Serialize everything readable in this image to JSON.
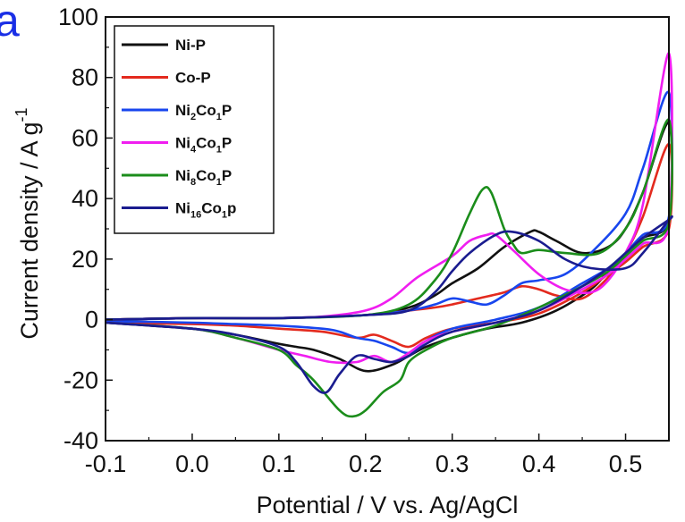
{
  "chart_data": {
    "type": "line",
    "panel_label": "a",
    "xlabel": "Potential / V vs. Ag/AgCl",
    "ylabel": "Current density / A g",
    "ylabel_sup": "-1",
    "xlim": [
      -0.1,
      0.55
    ],
    "ylim": [
      -40,
      100
    ],
    "xticks": [
      -0.1,
      0.0,
      0.1,
      0.2,
      0.3,
      0.4,
      0.5
    ],
    "xtick_labels": [
      "-0.1",
      "0.0",
      "0.1",
      "0.2",
      "0.3",
      "0.4",
      "0.5"
    ],
    "yticks": [
      -40,
      -20,
      0,
      20,
      40,
      60,
      80,
      100
    ],
    "ytick_labels": [
      "-40",
      "-20",
      "0",
      "20",
      "40",
      "60",
      "80",
      "100"
    ],
    "grid": false,
    "legend_position": "top-left",
    "series": [
      {
        "name": "Ni-P",
        "color": "#111111",
        "legend": [
          {
            "t": "Ni-P",
            "sub": false
          }
        ],
        "x": [
          -0.1,
          0.0,
          0.1,
          0.2,
          0.25,
          0.28,
          0.3,
          0.33,
          0.36,
          0.39,
          0.4,
          0.42,
          0.45,
          0.48,
          0.5,
          0.52,
          0.55,
          0.55,
          0.52,
          0.5,
          0.48,
          0.46,
          0.42,
          0.38,
          0.34,
          0.3,
          0.27,
          0.25,
          0.23,
          0.2,
          0.17,
          0.14,
          0.12,
          0.1,
          0.05,
          0.0,
          -0.1
        ],
        "y": [
          0,
          0.5,
          0.5,
          1.5,
          4,
          8,
          12,
          17,
          24,
          29,
          29,
          26,
          22,
          24,
          30,
          42,
          65,
          33,
          27,
          22,
          16,
          10,
          3,
          -1,
          -3,
          -6,
          -9,
          -12,
          -15,
          -17,
          -13,
          -10,
          -9,
          -8,
          -5,
          -3,
          -1
        ]
      },
      {
        "name": "Co-P",
        "color": "#e32a1e",
        "legend": [
          {
            "t": "Co-P",
            "sub": false
          }
        ],
        "x": [
          -0.1,
          0.0,
          0.1,
          0.2,
          0.25,
          0.28,
          0.3,
          0.33,
          0.36,
          0.38,
          0.4,
          0.42,
          0.45,
          0.48,
          0.5,
          0.52,
          0.55,
          0.55,
          0.52,
          0.5,
          0.48,
          0.45,
          0.4,
          0.35,
          0.3,
          0.27,
          0.25,
          0.23,
          0.21,
          0.19,
          0.15,
          0.1,
          0.05,
          0.0,
          -0.1
        ],
        "y": [
          0,
          0.5,
          0.5,
          1.5,
          3,
          4,
          5,
          7,
          9,
          11,
          10,
          8,
          7,
          14,
          22,
          34,
          58,
          30,
          24,
          19,
          15,
          9,
          2,
          -1,
          -3,
          -6,
          -9,
          -7,
          -5,
          -6,
          -4,
          -3,
          -2,
          -1.5,
          -1
        ]
      },
      {
        "name": "Ni2Co1P",
        "color": "#1846ee",
        "legend": [
          {
            "t": "Ni",
            "sub": false
          },
          {
            "t": "2",
            "sub": true
          },
          {
            "t": "Co",
            "sub": false
          },
          {
            "t": "1",
            "sub": true
          },
          {
            "t": "P",
            "sub": false
          }
        ],
        "x": [
          -0.1,
          0.0,
          0.1,
          0.2,
          0.25,
          0.28,
          0.3,
          0.32,
          0.34,
          0.36,
          0.38,
          0.4,
          0.43,
          0.46,
          0.5,
          0.52,
          0.55,
          0.55,
          0.52,
          0.5,
          0.48,
          0.45,
          0.4,
          0.35,
          0.3,
          0.27,
          0.25,
          0.23,
          0.21,
          0.19,
          0.17,
          0.15,
          0.1,
          0.05,
          0.0,
          -0.1
        ],
        "y": [
          0,
          0.5,
          0.5,
          1.5,
          3,
          5,
          7,
          6,
          5,
          8,
          12,
          13,
          15,
          22,
          35,
          50,
          75,
          34,
          28,
          22,
          17,
          12,
          4,
          0,
          -3,
          -7,
          -11,
          -9,
          -7,
          -6,
          -4,
          -3,
          -2,
          -1.5,
          -1,
          -0.5
        ]
      },
      {
        "name": "Ni4Co1P",
        "color": "#f01ef0",
        "legend": [
          {
            "t": "Ni",
            "sub": false
          },
          {
            "t": "4",
            "sub": true
          },
          {
            "t": "Co",
            "sub": false
          },
          {
            "t": "1",
            "sub": true
          },
          {
            "t": "P",
            "sub": false
          }
        ],
        "x": [
          -0.1,
          0.0,
          0.1,
          0.15,
          0.2,
          0.23,
          0.26,
          0.3,
          0.32,
          0.34,
          0.35,
          0.37,
          0.4,
          0.43,
          0.46,
          0.48,
          0.5,
          0.52,
          0.55,
          0.55,
          0.52,
          0.5,
          0.48,
          0.45,
          0.4,
          0.35,
          0.3,
          0.27,
          0.25,
          0.23,
          0.21,
          0.19,
          0.16,
          0.13,
          0.1,
          0.05,
          0.0,
          -0.1
        ],
        "y": [
          0,
          0.5,
          0.5,
          1,
          3,
          7,
          14,
          21,
          26,
          28,
          28,
          23,
          15,
          10,
          9,
          13,
          22,
          38,
          88,
          32,
          25,
          20,
          15,
          10,
          3,
          -1,
          -4,
          -7,
          -11,
          -14,
          -12,
          -14,
          -14,
          -12,
          -10,
          -6,
          -3,
          -1
        ]
      },
      {
        "name": "Ni8Co1P",
        "color": "#1b8d1b",
        "legend": [
          {
            "t": "Ni",
            "sub": false
          },
          {
            "t": "8",
            "sub": true
          },
          {
            "t": "Co",
            "sub": false
          },
          {
            "t": "1",
            "sub": true
          },
          {
            "t": "P",
            "sub": false
          }
        ],
        "x": [
          -0.1,
          0.0,
          0.1,
          0.2,
          0.25,
          0.28,
          0.3,
          0.32,
          0.335,
          0.345,
          0.36,
          0.37,
          0.38,
          0.4,
          0.43,
          0.47,
          0.5,
          0.52,
          0.55,
          0.55,
          0.52,
          0.5,
          0.48,
          0.45,
          0.4,
          0.35,
          0.3,
          0.27,
          0.25,
          0.24,
          0.22,
          0.2,
          0.185,
          0.17,
          0.14,
          0.12,
          0.1,
          0.05,
          0.0,
          -0.1
        ],
        "y": [
          0,
          0.5,
          0.5,
          1.5,
          5,
          13,
          22,
          35,
          43,
          42,
          30,
          25,
          22,
          23,
          22,
          22,
          30,
          42,
          66,
          32,
          26,
          21,
          16,
          11,
          4,
          -2,
          -6,
          -10,
          -14,
          -20,
          -24,
          -30,
          -32,
          -30,
          -20,
          -15,
          -10,
          -6,
          -3,
          -1
        ]
      },
      {
        "name": "Ni16Co1P",
        "color": "#1a1c8f",
        "legend": [
          {
            "t": "Ni",
            "sub": false
          },
          {
            "t": "16",
            "sub": true
          },
          {
            "t": "Co",
            "sub": false
          },
          {
            "t": "1",
            "sub": true
          },
          {
            "t": "p",
            "sub": false
          }
        ],
        "x": [
          -0.1,
          0.0,
          0.1,
          0.2,
          0.25,
          0.28,
          0.3,
          0.32,
          0.35,
          0.37,
          0.4,
          0.43,
          0.46,
          0.5,
          0.52,
          0.55,
          0.55,
          0.52,
          0.5,
          0.48,
          0.45,
          0.4,
          0.35,
          0.3,
          0.27,
          0.25,
          0.23,
          0.21,
          0.19,
          0.17,
          0.155,
          0.14,
          0.12,
          0.1,
          0.05,
          0.0,
          -0.1
        ],
        "y": [
          0,
          0.5,
          0.5,
          1.5,
          3,
          9,
          16,
          22,
          28,
          29,
          26,
          20,
          17,
          17,
          22,
          33,
          33,
          27,
          22,
          17,
          11,
          3,
          -1,
          -4,
          -8,
          -12,
          -14,
          -13,
          -12,
          -18,
          -24,
          -22,
          -14,
          -9,
          -5,
          -3,
          -1
        ]
      }
    ]
  }
}
